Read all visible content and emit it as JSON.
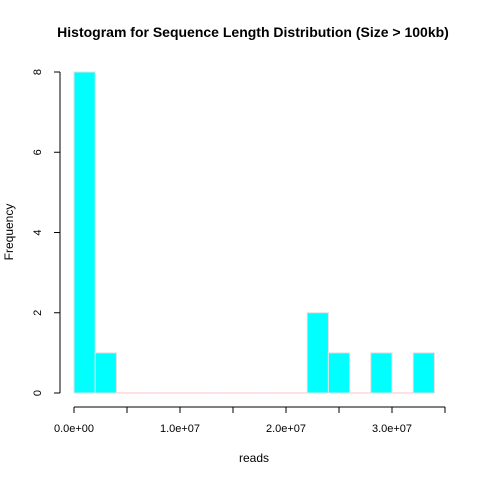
{
  "chart_data": {
    "type": "bar",
    "title": "Histogram for Sequence Length Distribution (Size > 100kb)",
    "xlabel": "reads",
    "ylabel": "Frequency",
    "xlim": [
      0,
      35000000
    ],
    "ylim": [
      0,
      8
    ],
    "bin_width": 2000000,
    "bins": [
      {
        "start": 0,
        "end": 2000000,
        "count": 8
      },
      {
        "start": 2000000,
        "end": 4000000,
        "count": 1
      },
      {
        "start": 4000000,
        "end": 6000000,
        "count": 0
      },
      {
        "start": 6000000,
        "end": 8000000,
        "count": 0
      },
      {
        "start": 8000000,
        "end": 10000000,
        "count": 0
      },
      {
        "start": 10000000,
        "end": 12000000,
        "count": 0
      },
      {
        "start": 12000000,
        "end": 14000000,
        "count": 0
      },
      {
        "start": 14000000,
        "end": 16000000,
        "count": 0
      },
      {
        "start": 16000000,
        "end": 18000000,
        "count": 0
      },
      {
        "start": 18000000,
        "end": 20000000,
        "count": 0
      },
      {
        "start": 20000000,
        "end": 22000000,
        "count": 0
      },
      {
        "start": 22000000,
        "end": 24000000,
        "count": 2
      },
      {
        "start": 24000000,
        "end": 26000000,
        "count": 1
      },
      {
        "start": 26000000,
        "end": 28000000,
        "count": 0
      },
      {
        "start": 28000000,
        "end": 30000000,
        "count": 1
      },
      {
        "start": 30000000,
        "end": 32000000,
        "count": 0
      },
      {
        "start": 32000000,
        "end": 34000000,
        "count": 1
      }
    ],
    "x_ticks": [
      {
        "value": 0,
        "label": "0.0e+00"
      },
      {
        "value": 5000000,
        "label": ""
      },
      {
        "value": 10000000,
        "label": "1.0e+07"
      },
      {
        "value": 15000000,
        "label": ""
      },
      {
        "value": 20000000,
        "label": "2.0e+07"
      },
      {
        "value": 25000000,
        "label": ""
      },
      {
        "value": 30000000,
        "label": "3.0e+07"
      },
      {
        "value": 35000000,
        "label": ""
      }
    ],
    "y_ticks": [
      {
        "value": 0,
        "label": "0"
      },
      {
        "value": 2,
        "label": "2"
      },
      {
        "value": 4,
        "label": "4"
      },
      {
        "value": 6,
        "label": "6"
      },
      {
        "value": 8,
        "label": "8"
      }
    ],
    "grid": false,
    "legend": "none",
    "colors": {
      "bar_fill": "#00FFFF",
      "bar_border": "#E0E0E0",
      "empty_bin": "#FFC0CB",
      "axis": "#000000"
    }
  }
}
